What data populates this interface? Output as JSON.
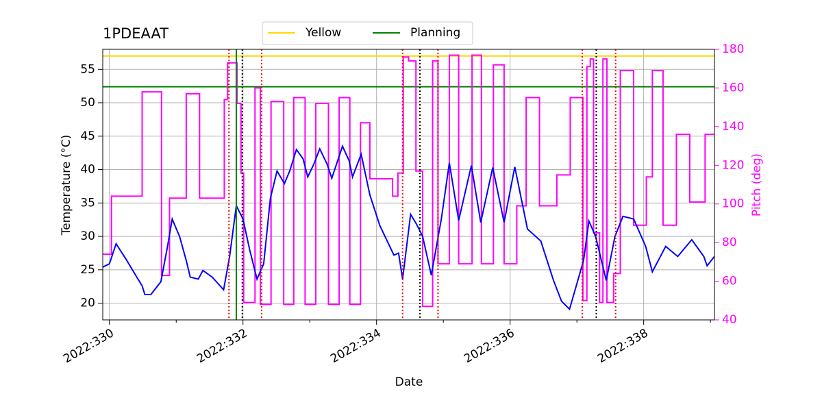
{
  "chart_data": {
    "type": "line",
    "title": "1PDEAAT",
    "xlabel": "Date",
    "ylabel": "Temperature (°C)",
    "y2label": "Pitch (deg)",
    "y2color": "#ff00ff",
    "legend": "upper center",
    "grid": true,
    "xlim": [
      329.9,
      339.06
    ],
    "xticks": [
      {
        "value": 330,
        "label": "2022:330"
      },
      {
        "value": 332,
        "label": "2022:332"
      },
      {
        "value": 334,
        "label": "2022:334"
      },
      {
        "value": 336,
        "label": "2022:336"
      },
      {
        "value": 338,
        "label": "2022:338"
      }
    ],
    "xminorticks": [
      331,
      333,
      335,
      337,
      339
    ],
    "ylim": [
      17.5,
      58
    ],
    "yticks": [
      20,
      25,
      30,
      35,
      40,
      45,
      50,
      55
    ],
    "y2lim": [
      40,
      180
    ],
    "y2ticks": [
      40,
      60,
      80,
      100,
      120,
      140,
      160,
      180
    ],
    "hlines": [
      {
        "name": "Yellow",
        "y": 57,
        "color": "#ffd700"
      },
      {
        "name": "Planning",
        "y": 52.4,
        "color": "#008000"
      }
    ],
    "vlines": [
      {
        "x": 331.9,
        "color": "#008000",
        "style": "solid"
      },
      {
        "x": 331.79,
        "color": "#ff0000",
        "style": "dotted"
      },
      {
        "x": 332.28,
        "color": "#ff0000",
        "style": "dotted"
      },
      {
        "x": 334.39,
        "color": "#ff0000",
        "style": "dotted"
      },
      {
        "x": 334.92,
        "color": "#ff0000",
        "style": "dotted"
      },
      {
        "x": 337.08,
        "color": "#ff0000",
        "style": "dotted"
      },
      {
        "x": 337.58,
        "color": "#ff0000",
        "style": "dotted"
      },
      {
        "x": 331.99,
        "color": "#000000",
        "style": "dotted"
      },
      {
        "x": 334.65,
        "color": "#000000",
        "style": "dotted"
      },
      {
        "x": 337.29,
        "color": "#000000",
        "style": "dotted"
      }
    ],
    "series": [
      {
        "color": "#0000ff",
        "axis": "y",
        "x": [
          329.9,
          330.0,
          330.1,
          330.26,
          330.41,
          330.49,
          330.53,
          330.62,
          330.77,
          330.87,
          330.94,
          331.05,
          331.15,
          331.21,
          331.33,
          331.4,
          331.54,
          331.71,
          331.8,
          331.9,
          332.0,
          332.1,
          332.21,
          332.31,
          332.41,
          332.51,
          332.62,
          332.7,
          332.8,
          332.9,
          332.97,
          333.06,
          333.15,
          333.26,
          333.33,
          333.49,
          333.59,
          333.64,
          333.77,
          333.9,
          334.05,
          334.26,
          334.33,
          334.39,
          334.51,
          334.6,
          334.69,
          334.82,
          334.97,
          335.09,
          335.23,
          335.42,
          335.56,
          335.74,
          335.91,
          336.07,
          336.26,
          336.46,
          336.65,
          336.77,
          336.89,
          337.1,
          337.18,
          337.28,
          337.44,
          337.57,
          337.69,
          337.85,
          338.03,
          338.13,
          338.33,
          338.51,
          338.72,
          338.9,
          338.95,
          339.06
        ],
        "values": [
          25.4,
          25.9,
          28.9,
          26.4,
          23.9,
          22.6,
          21.3,
          21.3,
          23.2,
          28.5,
          32.6,
          30.0,
          26.4,
          23.9,
          23.6,
          24.9,
          23.9,
          22.0,
          27.0,
          34.6,
          32.6,
          28.0,
          23.6,
          25.9,
          35.7,
          39.8,
          37.9,
          39.8,
          43.0,
          41.6,
          38.9,
          40.8,
          43.1,
          40.8,
          38.7,
          43.5,
          41.3,
          38.9,
          42.3,
          36.2,
          31.6,
          27.2,
          27.5,
          23.6,
          33.3,
          31.8,
          30.0,
          24.2,
          32.6,
          41.0,
          32.4,
          40.6,
          32.1,
          40.3,
          32.1,
          40.4,
          31.1,
          29.3,
          23.4,
          20.3,
          19.1,
          26.4,
          32.3,
          30.0,
          23.4,
          30.0,
          33.0,
          32.6,
          28.5,
          24.7,
          28.5,
          27.0,
          29.5,
          27.0,
          25.6,
          27.0
        ]
      },
      {
        "color": "#ff00ff",
        "axis": "y2",
        "step": "post",
        "x": [
          329.9,
          330.03,
          330.49,
          330.78,
          330.9,
          331.15,
          331.35,
          331.72,
          331.77,
          331.91,
          331.97,
          332.01,
          332.18,
          332.26,
          332.42,
          332.61,
          332.76,
          332.93,
          333.09,
          333.28,
          333.44,
          333.6,
          333.76,
          333.9,
          334.24,
          334.32,
          334.4,
          334.48,
          334.59,
          334.69,
          334.84,
          334.92,
          335.09,
          335.23,
          335.43,
          335.57,
          335.75,
          335.91,
          336.1,
          336.24,
          336.44,
          336.7,
          336.9,
          337.09,
          337.15,
          337.2,
          337.25,
          337.34,
          337.39,
          337.45,
          337.55,
          337.65,
          337.85,
          338.04,
          338.13,
          338.29,
          338.49,
          338.69,
          338.92
        ],
        "values": [
          74,
          104,
          158,
          63,
          103,
          157,
          103,
          154,
          173,
          152,
          116,
          49,
          160,
          48,
          153,
          48,
          155,
          48,
          152,
          48,
          155,
          48,
          142,
          113,
          104,
          116,
          176,
          174,
          117,
          47,
          174,
          69,
          177,
          69,
          177,
          69,
          172,
          69,
          99,
          155,
          99,
          115,
          155,
          50,
          171,
          175,
          85,
          49,
          175,
          49,
          64,
          169,
          89,
          114,
          169,
          89,
          136,
          101,
          136
        ]
      }
    ]
  }
}
